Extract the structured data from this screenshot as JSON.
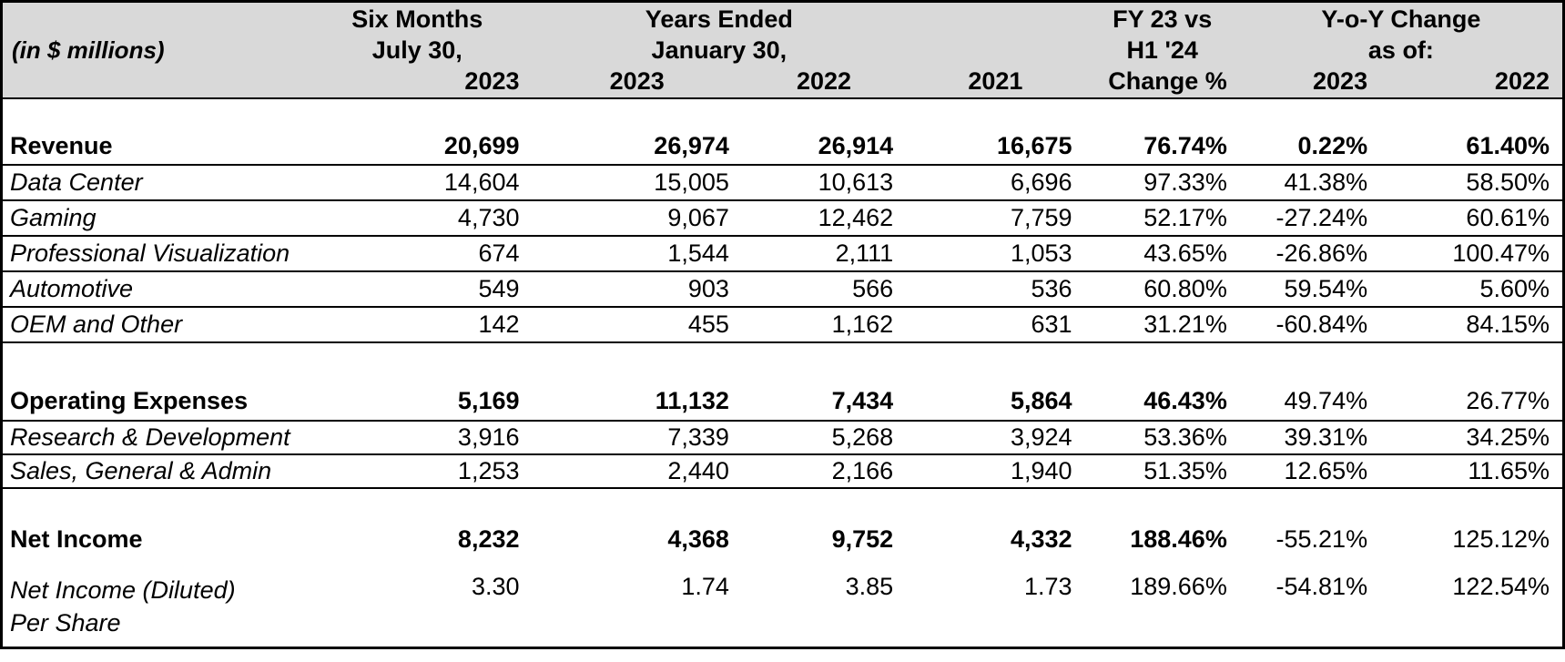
{
  "unit_note": "(in $ millions)",
  "header": {
    "six_months_line1": "Six Months",
    "six_months_line2": "July 30,",
    "six_months_year": "2023",
    "years_ended_line1": "Years Ended",
    "years_ended_line2": "January 30,",
    "years_ended_year1": "2023",
    "years_ended_year2": "2022",
    "year_2021": "2021",
    "fy_change_line1": "FY 23 vs",
    "fy_change_line2": "H1 '24",
    "fy_change_line3": "Change %",
    "yoy_line1": "Y-o-Y Change",
    "yoy_line2": "as of:",
    "yoy_year1": "2023",
    "yoy_year2": "2022"
  },
  "rows": [
    {
      "label": "Revenue",
      "values": [
        "20,699",
        "26,974",
        "26,914",
        "16,675",
        "76.74%",
        "0.22%",
        "61.40%"
      ]
    },
    {
      "label": "Data Center",
      "values": [
        "14,604",
        "15,005",
        "10,613",
        "6,696",
        "97.33%",
        "41.38%",
        "58.50%"
      ]
    },
    {
      "label": "Gaming",
      "values": [
        "4,730",
        "9,067",
        "12,462",
        "7,759",
        "52.17%",
        "-27.24%",
        "60.61%"
      ]
    },
    {
      "label": "Professional Visualization",
      "values": [
        "674",
        "1,544",
        "2,111",
        "1,053",
        "43.65%",
        "-26.86%",
        "100.47%"
      ]
    },
    {
      "label": "Automotive",
      "values": [
        "549",
        "903",
        "566",
        "536",
        "60.80%",
        "59.54%",
        "5.60%"
      ]
    },
    {
      "label": "OEM and Other",
      "values": [
        "142",
        "455",
        "1,162",
        "631",
        "31.21%",
        "-60.84%",
        "84.15%"
      ]
    },
    {
      "label": "Operating Expenses",
      "values": [
        "5,169",
        "11,132",
        "7,434",
        "5,864",
        "46.43%",
        "49.74%",
        "26.77%"
      ]
    },
    {
      "label": "Research & Development",
      "values": [
        "3,916",
        "7,339",
        "5,268",
        "3,924",
        "53.36%",
        "39.31%",
        "34.25%"
      ]
    },
    {
      "label": "Sales, General & Admin",
      "values": [
        "1,253",
        "2,440",
        "2,166",
        "1,940",
        "51.35%",
        "12.65%",
        "11.65%"
      ]
    },
    {
      "label": "Net Income",
      "values": [
        "8,232",
        "4,368",
        "9,752",
        "4,332",
        "188.46%",
        "-55.21%",
        "125.12%"
      ]
    },
    {
      "label_line1": "Net Income (Diluted)",
      "label_line2": "Per Share",
      "values": [
        "3.30",
        "1.74",
        "3.85",
        "1.73",
        "189.66%",
        "-54.81%",
        "122.54%"
      ]
    }
  ],
  "colors": {
    "header_bg": "#d9d9d9",
    "border": "#000000",
    "text": "#000000",
    "background": "#ffffff"
  },
  "chart_data": {
    "type": "table",
    "unit": "(in $ millions)",
    "columns": [
      "Six Months July 30, 2023",
      "Years Ended January 30, 2023",
      "Years Ended January 30, 2022",
      "Years Ended January 30, 2021",
      "FY 23 vs H1 '24 Change %",
      "Y-o-Y Change as of: 2023",
      "Y-o-Y Change as of: 2022"
    ],
    "rows": [
      {
        "label": "Revenue",
        "values": [
          20699,
          26974,
          26914,
          16675,
          76.74,
          0.22,
          61.4
        ]
      },
      {
        "label": "Data Center",
        "values": [
          14604,
          15005,
          10613,
          6696,
          97.33,
          41.38,
          58.5
        ]
      },
      {
        "label": "Gaming",
        "values": [
          4730,
          9067,
          12462,
          7759,
          52.17,
          -27.24,
          60.61
        ]
      },
      {
        "label": "Professional Visualization",
        "values": [
          674,
          1544,
          2111,
          1053,
          43.65,
          -26.86,
          100.47
        ]
      },
      {
        "label": "Automotive",
        "values": [
          549,
          903,
          566,
          536,
          60.8,
          59.54,
          5.6
        ]
      },
      {
        "label": "OEM and Other",
        "values": [
          142,
          455,
          1162,
          631,
          31.21,
          -60.84,
          84.15
        ]
      },
      {
        "label": "Operating Expenses",
        "values": [
          5169,
          11132,
          7434,
          5864,
          46.43,
          49.74,
          26.77
        ]
      },
      {
        "label": "Research & Development",
        "values": [
          3916,
          7339,
          5268,
          3924,
          53.36,
          39.31,
          34.25
        ]
      },
      {
        "label": "Sales, General & Admin",
        "values": [
          1253,
          2440,
          2166,
          1940,
          51.35,
          12.65,
          11.65
        ]
      },
      {
        "label": "Net Income",
        "values": [
          8232,
          4368,
          9752,
          4332,
          188.46,
          -55.21,
          125.12
        ]
      },
      {
        "label": "Net Income (Diluted) Per Share",
        "values": [
          3.3,
          1.74,
          3.85,
          1.73,
          189.66,
          -54.81,
          122.54
        ]
      }
    ]
  }
}
